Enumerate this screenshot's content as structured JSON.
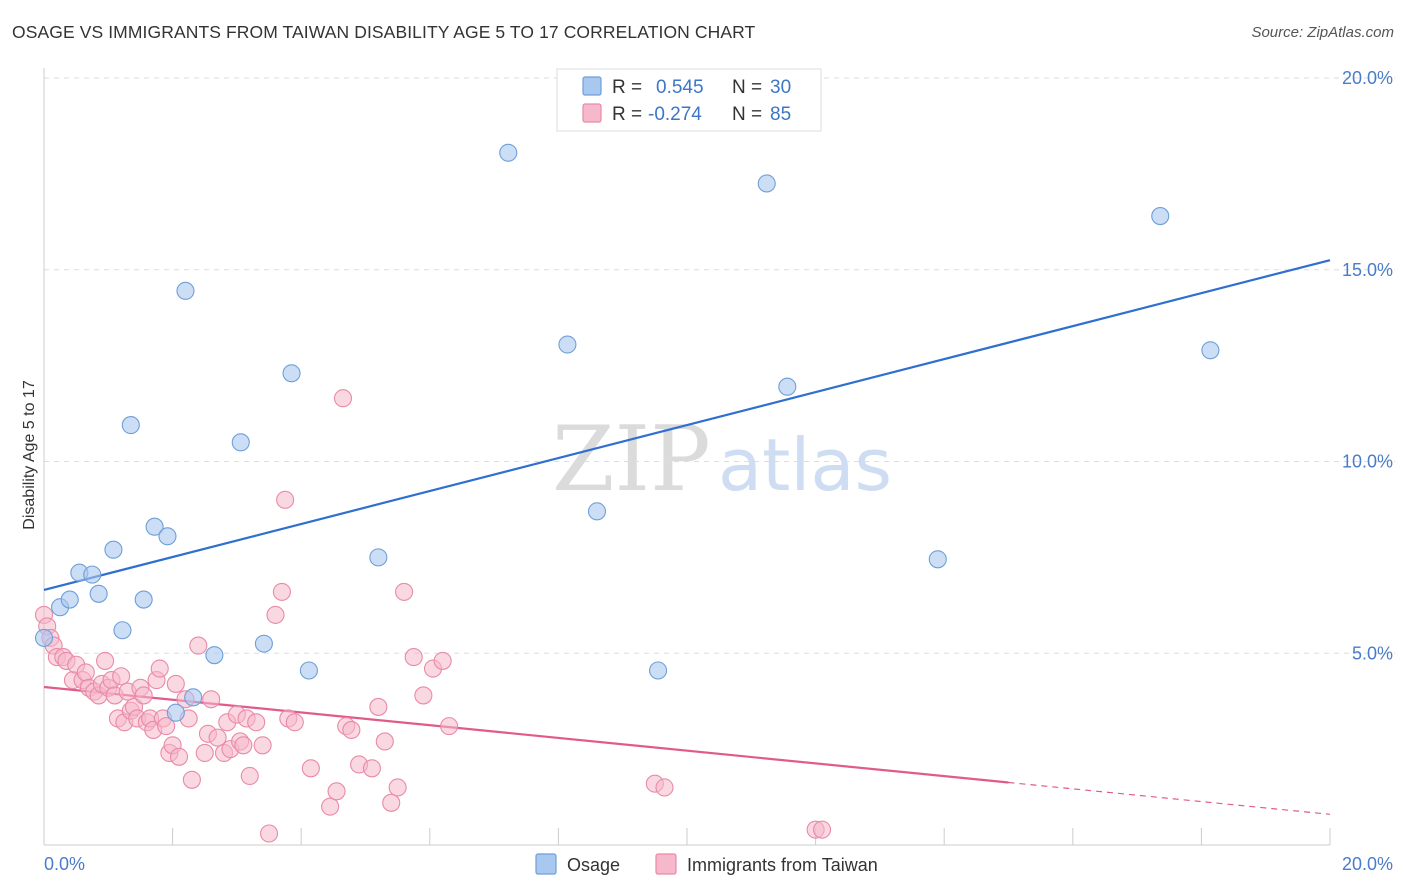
{
  "title": "OSAGE VS IMMIGRANTS FROM TAIWAN DISABILITY AGE 5 TO 17 CORRELATION CHART",
  "source": "Source: ZipAtlas.com",
  "watermark": {
    "zip": "ZIP",
    "atlas": "atlas"
  },
  "legend": {
    "rows": [
      {
        "r_label": "R =",
        "r_value": "0.545",
        "n_label": "N =",
        "n_value": "30"
      },
      {
        "r_label": "R =",
        "r_value": "-0.274",
        "n_label": "N =",
        "n_value": "85"
      }
    ]
  },
  "bottom_legend": [
    "Osage",
    "Immigrants from Taiwan"
  ],
  "colors": {
    "osage_fill": "#a8c8f0",
    "osage_stroke": "#6f9fd8",
    "osage_line": "#2f6fcf",
    "taiwan_fill": "#f6b8cb",
    "taiwan_stroke": "#e98aa8",
    "taiwan_line": "#e05b8c",
    "grid": "#dddddd",
    "tick_text": "#4a7cc9"
  },
  "chart_data": {
    "type": "scatter",
    "title": "OSAGE VS IMMIGRANTS FROM TAIWAN DISABILITY AGE 5 TO 17 CORRELATION CHART",
    "xlabel": "",
    "ylabel": "Disability Age 5 to 17",
    "xlim": [
      0,
      20
    ],
    "ylim": [
      0,
      20
    ],
    "x_tick_labels": [
      "0.0%",
      "20.0%"
    ],
    "y_ticks": [
      {
        "value": 5,
        "label": "5.0%"
      },
      {
        "value": 10,
        "label": "10.0%"
      },
      {
        "value": 15,
        "label": "15.0%"
      },
      {
        "value": 20,
        "label": "20.0%"
      }
    ],
    "series": [
      {
        "name": "Osage",
        "r": 0.545,
        "n": 30,
        "trend": {
          "x0": 0,
          "y0": 6.65,
          "x1": 20,
          "y1": 15.25,
          "solid_to": 20
        },
        "points": [
          [
            0.0,
            5.4
          ],
          [
            0.25,
            6.2
          ],
          [
            0.4,
            6.4
          ],
          [
            0.55,
            7.1
          ],
          [
            0.75,
            7.05
          ],
          [
            0.85,
            6.55
          ],
          [
            1.08,
            7.7
          ],
          [
            1.22,
            5.6
          ],
          [
            1.35,
            10.95
          ],
          [
            1.55,
            6.4
          ],
          [
            1.72,
            8.3
          ],
          [
            1.92,
            8.05
          ],
          [
            2.05,
            3.45
          ],
          [
            2.2,
            14.45
          ],
          [
            2.32,
            3.85
          ],
          [
            2.65,
            4.95
          ],
          [
            3.06,
            10.5
          ],
          [
            3.42,
            5.25
          ],
          [
            3.85,
            12.3
          ],
          [
            4.12,
            4.55
          ],
          [
            5.2,
            7.5
          ],
          [
            7.22,
            18.05
          ],
          [
            8.14,
            13.05
          ],
          [
            8.6,
            8.7
          ],
          [
            9.55,
            4.55
          ],
          [
            11.24,
            17.25
          ],
          [
            11.56,
            11.95
          ],
          [
            13.9,
            7.45
          ],
          [
            17.36,
            16.4
          ],
          [
            18.14,
            12.9
          ]
        ]
      },
      {
        "name": "Immigrants from Taiwan",
        "r": -0.274,
        "n": 85,
        "trend": {
          "x0": 0,
          "y0": 4.12,
          "x1": 20,
          "y1": 0.8,
          "solid_to": 15
        },
        "points": [
          [
            0.0,
            6.0
          ],
          [
            0.05,
            5.7
          ],
          [
            0.1,
            5.4
          ],
          [
            0.15,
            5.2
          ],
          [
            0.2,
            4.9
          ],
          [
            0.3,
            4.9
          ],
          [
            0.35,
            4.8
          ],
          [
            0.45,
            4.3
          ],
          [
            0.5,
            4.7
          ],
          [
            0.6,
            4.3
          ],
          [
            0.65,
            4.5
          ],
          [
            0.7,
            4.1
          ],
          [
            0.78,
            4.0
          ],
          [
            0.85,
            3.9
          ],
          [
            0.9,
            4.2
          ],
          [
            0.95,
            4.8
          ],
          [
            1.0,
            4.1
          ],
          [
            1.05,
            4.3
          ],
          [
            1.1,
            3.9
          ],
          [
            1.15,
            3.3
          ],
          [
            1.2,
            4.4
          ],
          [
            1.25,
            3.2
          ],
          [
            1.3,
            4.0
          ],
          [
            1.35,
            3.5
          ],
          [
            1.4,
            3.6
          ],
          [
            1.45,
            3.3
          ],
          [
            1.5,
            4.1
          ],
          [
            1.55,
            3.9
          ],
          [
            1.6,
            3.2
          ],
          [
            1.65,
            3.3
          ],
          [
            1.7,
            3.0
          ],
          [
            1.75,
            4.3
          ],
          [
            1.8,
            4.6
          ],
          [
            1.85,
            3.3
          ],
          [
            1.9,
            3.1
          ],
          [
            1.95,
            2.4
          ],
          [
            2.0,
            2.6
          ],
          [
            2.05,
            4.2
          ],
          [
            2.1,
            2.3
          ],
          [
            2.2,
            3.8
          ],
          [
            2.25,
            3.3
          ],
          [
            2.3,
            1.7
          ],
          [
            2.4,
            5.2
          ],
          [
            2.5,
            2.4
          ],
          [
            2.55,
            2.9
          ],
          [
            2.6,
            3.8
          ],
          [
            2.7,
            2.8
          ],
          [
            2.8,
            2.4
          ],
          [
            2.85,
            3.2
          ],
          [
            2.9,
            2.5
          ],
          [
            3.0,
            3.4
          ],
          [
            3.05,
            2.7
          ],
          [
            3.15,
            3.3
          ],
          [
            3.2,
            1.8
          ],
          [
            3.3,
            3.2
          ],
          [
            3.4,
            2.6
          ],
          [
            3.5,
            0.3
          ],
          [
            3.6,
            6.0
          ],
          [
            3.7,
            6.6
          ],
          [
            3.75,
            9.0
          ],
          [
            3.8,
            3.3
          ],
          [
            3.9,
            3.2
          ],
          [
            4.15,
            2.0
          ],
          [
            4.45,
            1.0
          ],
          [
            4.55,
            1.4
          ],
          [
            4.65,
            11.65
          ],
          [
            4.7,
            3.1
          ],
          [
            4.78,
            3.0
          ],
          [
            4.9,
            2.1
          ],
          [
            5.1,
            2.0
          ],
          [
            5.2,
            3.6
          ],
          [
            5.3,
            2.7
          ],
          [
            5.4,
            1.1
          ],
          [
            5.5,
            1.5
          ],
          [
            5.6,
            6.6
          ],
          [
            5.75,
            4.9
          ],
          [
            5.9,
            3.9
          ],
          [
            6.05,
            4.6
          ],
          [
            6.2,
            4.8
          ],
          [
            6.3,
            3.1
          ],
          [
            9.5,
            1.6
          ],
          [
            9.65,
            1.5
          ],
          [
            12.0,
            0.4
          ],
          [
            12.1,
            0.4
          ],
          [
            3.1,
            2.6
          ]
        ]
      }
    ]
  }
}
